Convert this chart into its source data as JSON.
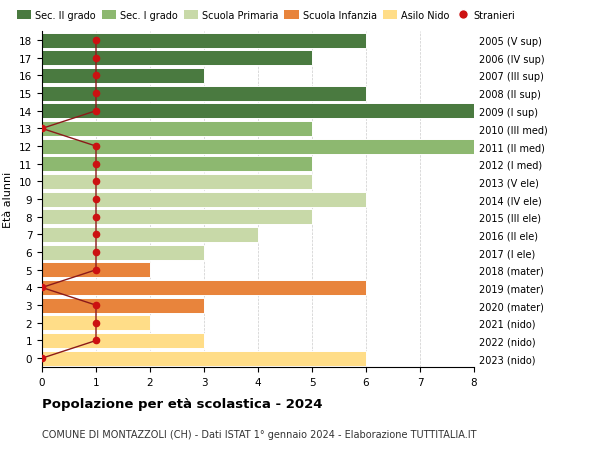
{
  "ages": [
    0,
    1,
    2,
    3,
    4,
    5,
    6,
    7,
    8,
    9,
    10,
    11,
    12,
    13,
    14,
    15,
    16,
    17,
    18
  ],
  "bar_values": [
    6,
    3,
    2,
    3,
    6,
    2,
    3,
    4,
    5,
    6,
    5,
    5,
    8.5,
    5,
    8.5,
    6,
    3,
    5,
    6
  ],
  "bar_colors": [
    "#FFDD88",
    "#FFDD88",
    "#FFDD88",
    "#E8843C",
    "#E8843C",
    "#E8843C",
    "#C8D9A8",
    "#C8D9A8",
    "#C8D9A8",
    "#C8D9A8",
    "#C8D9A8",
    "#8DB870",
    "#8DB870",
    "#8DB870",
    "#4A7A40",
    "#4A7A40",
    "#4A7A40",
    "#4A7A40",
    "#4A7A40"
  ],
  "stranieri_x": [
    0,
    1,
    1,
    1,
    0,
    1,
    1,
    1,
    1,
    1,
    1,
    1,
    1,
    0,
    1,
    1,
    1,
    1,
    1
  ],
  "right_labels": [
    "2023 (nido)",
    "2022 (nido)",
    "2021 (nido)",
    "2020 (mater)",
    "2019 (mater)",
    "2018 (mater)",
    "2017 (I ele)",
    "2016 (II ele)",
    "2015 (III ele)",
    "2014 (IV ele)",
    "2013 (V ele)",
    "2012 (I med)",
    "2011 (II med)",
    "2010 (III med)",
    "2009 (I sup)",
    "2008 (II sup)",
    "2007 (III sup)",
    "2006 (IV sup)",
    "2005 (V sup)"
  ],
  "legend_labels": [
    "Sec. II grado",
    "Sec. I grado",
    "Scuola Primaria",
    "Scuola Infanzia",
    "Asilo Nido",
    "Stranieri"
  ],
  "legend_colors": [
    "#4A7A40",
    "#8DB870",
    "#C8D9A8",
    "#E8843C",
    "#FFDD88",
    "#CC1111"
  ],
  "ylabel_left": "Età alunni",
  "title_bold": "Popolazione per età scolastica - 2024",
  "subtitle": "COMUNE DI MONTAZZOLI (CH) - Dati ISTAT 1° gennaio 2024 - Elaborazione TUTTITALIA.IT",
  "xlim": [
    0,
    8
  ],
  "background_color": "#FFFFFF",
  "grid_color": "#CCCCCC"
}
